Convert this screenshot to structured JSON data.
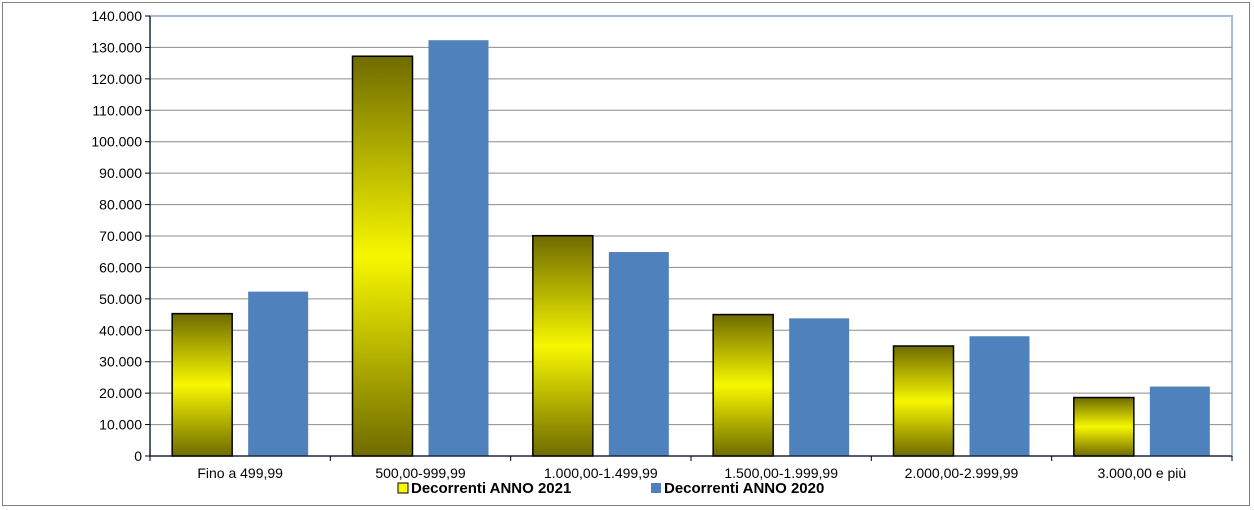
{
  "chart_data": {
    "type": "bar",
    "categories": [
      "Fino a 499,99",
      "500,00-999,99",
      "1.000,00-1.499,99",
      "1.500,00-1.999,99",
      "2.000,00-2.999,99",
      "3.000,00 e più"
    ],
    "series": [
      {
        "name": "Decorrenti ANNO 2021",
        "values": [
          45300,
          127200,
          70100,
          45000,
          35000,
          18600
        ],
        "color": "#f7f700",
        "dark_color": "#6f6b00"
      },
      {
        "name": "Decorrenti ANNO 2020",
        "values": [
          52300,
          132300,
          64900,
          43800,
          38100,
          22100
        ],
        "color": "#4f81bd"
      }
    ],
    "ylim": [
      0,
      140000
    ],
    "yticks": [
      0,
      10000,
      20000,
      30000,
      40000,
      50000,
      60000,
      70000,
      80000,
      90000,
      100000,
      110000,
      120000,
      130000,
      140000
    ],
    "ytick_labels": [
      "0",
      "10.000",
      "20.000",
      "30.000",
      "40.000",
      "50.000",
      "60.000",
      "70.000",
      "80.000",
      "90.000",
      "100.000",
      "110.000",
      "120.000",
      "130.000",
      "140.000"
    ],
    "grid": true,
    "legend": "bottom-center"
  }
}
